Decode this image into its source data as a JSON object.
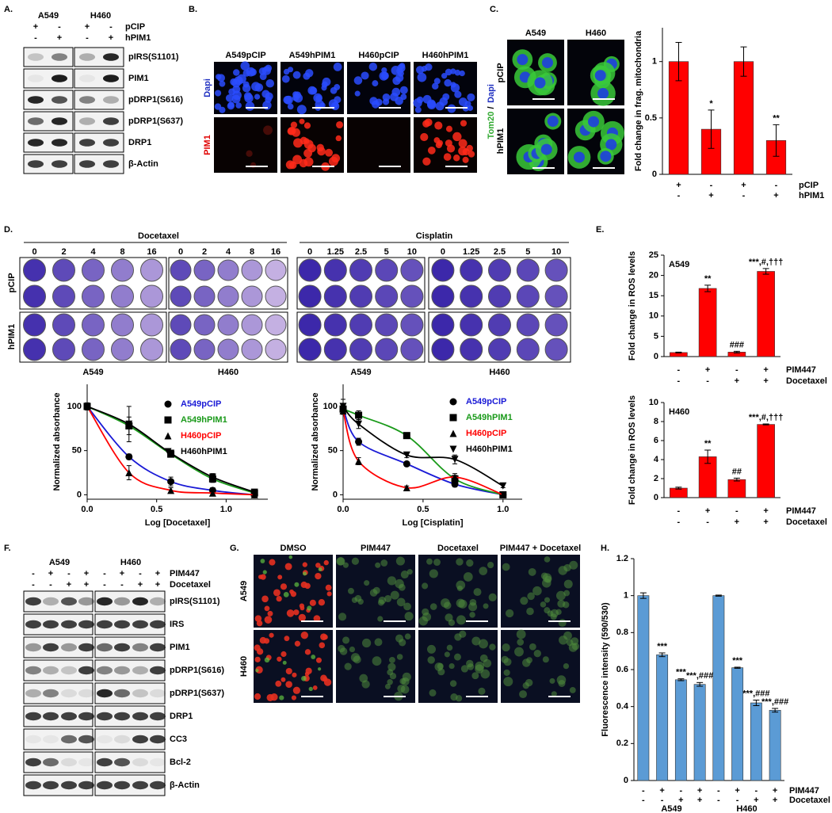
{
  "panel_labels": [
    "A.",
    "B.",
    "C.",
    "D.",
    "E.",
    "F.",
    "G.",
    "H."
  ],
  "panel_a": {
    "cell_lines": [
      "A549",
      "H460"
    ],
    "row_labels": [
      "pCIP",
      "hPIM1"
    ],
    "signs": [
      [
        "+",
        "-",
        "+",
        "-"
      ],
      [
        "-",
        "+",
        "-",
        "+"
      ]
    ],
    "bands": [
      "pIRS(S1101)",
      "PIM1",
      "pDRP1(S616)",
      "pDRP1(S637)",
      "DRP1",
      "β-Actin"
    ]
  },
  "panel_b": {
    "columns": [
      "A549pCIP",
      "A549hPIM1",
      "H460pCIP",
      "H460hPIM1"
    ],
    "rows": [
      "Dapi",
      "PIM1"
    ]
  },
  "panel_c_images": {
    "columns": [
      "A549",
      "H460"
    ],
    "rows": [
      "pCIP",
      "hPIM1"
    ],
    "stain": "Tom20",
    "separator": "/",
    "counterstain": "Dapi"
  },
  "panel_d_plates": {
    "drugs": [
      {
        "name": "Docetaxel",
        "doses": [
          "0",
          "2",
          "4",
          "8",
          "16"
        ]
      },
      {
        "name": "Cisplatin",
        "doses": [
          "0",
          "1.25",
          "2.5",
          "5",
          "10"
        ]
      }
    ],
    "rows": [
      "pCIP",
      "hPIM1"
    ],
    "cell_lines": [
      "A549",
      "H460",
      "A549",
      "H460"
    ]
  },
  "panel_f": {
    "cell_lines": [
      "A549",
      "H460"
    ],
    "conditions": [
      {
        "name": "PIM447",
        "signs": [
          "-",
          "+",
          "-",
          "+",
          "-",
          "+",
          "-",
          "+"
        ]
      },
      {
        "name": "Docetaxel",
        "signs": [
          "-",
          "-",
          "+",
          "+",
          "-",
          "-",
          "+",
          "+"
        ]
      }
    ],
    "bands": [
      "pIRS(S1101)",
      "IRS",
      "PIM1",
      "pDRP1(S616)",
      "pDRP1(S637)",
      "DRP1",
      "CC3",
      "Bcl-2",
      "β-Actin"
    ]
  },
  "panel_g": {
    "columns": [
      "DMSO",
      "PIM447",
      "Docetaxel",
      "PIM447 + Docetaxel"
    ],
    "rows": [
      "A549",
      "H460"
    ]
  },
  "chart_data": [
    {
      "type": "bar",
      "ylabel": "Fold change in frag. mitochondria",
      "values": [
        1,
        0.4,
        1,
        0.3
      ],
      "errors": [
        0.17,
        0.17,
        0.13,
        0.14
      ],
      "annotations": [
        null,
        "*",
        null,
        "**"
      ],
      "color": "#ff0000",
      "ylim": [
        0,
        1.3
      ],
      "yticks": [
        0,
        0.5,
        1
      ],
      "conditions": [
        {
          "name": "pCIP",
          "signs": [
            "+",
            "-",
            "+",
            "-"
          ]
        },
        {
          "name": "hPIM1",
          "signs": [
            "-",
            "+",
            "-",
            "+"
          ]
        }
      ]
    },
    {
      "type": "line",
      "xlabel": "Log [Docetaxel]",
      "ylabel": "Normalized absorbance",
      "x": [
        0,
        0.301,
        0.602,
        0.903,
        1.204
      ],
      "xlim": [
        0,
        1.3
      ],
      "xticks": [
        {
          "value": 0,
          "label": "0.0"
        },
        0.5,
        {
          "value": 1,
          "label": "1.0"
        }
      ],
      "ylim": [
        -5,
        125
      ],
      "yticks": [
        0,
        50,
        100
      ],
      "marker_color": "#000000",
      "series": [
        {
          "name": "A549pCIP",
          "color": "#1a1ad6",
          "marker": "circle",
          "values": [
            100,
            43,
            15,
            5,
            0
          ],
          "errors": [
            3,
            3,
            5,
            3,
            2
          ]
        },
        {
          "name": "A549hPIM1",
          "color": "#1a9a1a",
          "marker": "square",
          "values": [
            100,
            78,
            46,
            18,
            2
          ],
          "errors": [
            4,
            10,
            3,
            4,
            2
          ]
        },
        {
          "name": "H460pCIP",
          "color": "#ff0000",
          "marker": "triangle",
          "values": [
            100,
            25,
            5,
            2,
            0
          ],
          "errors": [
            3,
            8,
            3,
            2,
            1
          ]
        },
        {
          "name": "H460hPIM1",
          "color": "#000000",
          "marker": "triangle-down",
          "values": [
            100,
            80,
            47,
            20,
            3
          ],
          "errors": [
            4,
            20,
            3,
            4,
            2
          ]
        }
      ]
    },
    {
      "type": "line",
      "xlabel": "Log [Cisplatin]",
      "ylabel": "Normalized absorbance",
      "x": [
        0,
        0.097,
        0.398,
        0.699,
        1.0
      ],
      "xlim": [
        0,
        1.12
      ],
      "xticks": [
        {
          "value": 0,
          "label": "0.0"
        },
        0.5,
        {
          "value": 1,
          "label": "1.0"
        }
      ],
      "ylim": [
        -5,
        125
      ],
      "yticks": [
        0,
        50,
        100
      ],
      "marker_color": "#000000",
      "series": [
        {
          "name": "A549pCIP",
          "color": "#1a1ad6",
          "marker": "circle",
          "values": [
            98,
            60,
            35,
            12,
            0
          ],
          "errors": [
            3,
            4,
            2,
            3,
            2
          ]
        },
        {
          "name": "A549hPIM1",
          "color": "#1a9a1a",
          "marker": "square",
          "values": [
            97,
            90,
            67,
            18,
            0
          ],
          "errors": [
            6,
            5,
            2,
            4,
            2
          ]
        },
        {
          "name": "H460pCIP",
          "color": "#ff0000",
          "marker": "triangle",
          "values": [
            95,
            38,
            8,
            20,
            0
          ],
          "errors": [
            3,
            4,
            2,
            4,
            2
          ]
        },
        {
          "name": "H460hPIM1",
          "color": "#000000",
          "marker": "triangle-down",
          "values": [
            100,
            80,
            45,
            40,
            10
          ],
          "errors": [
            8,
            5,
            3,
            5,
            2
          ]
        }
      ]
    },
    {
      "type": "bar",
      "label": "A549",
      "ylabel": "Fold change in ROS levels",
      "values": [
        1,
        16.8,
        1.1,
        21
      ],
      "errors": [
        0.1,
        0.8,
        0.2,
        0.7
      ],
      "annotations": [
        null,
        "**",
        "###",
        "***,#,†††"
      ],
      "color": "#ff0000",
      "ylim": [
        0,
        25
      ],
      "yticks": [
        0,
        5,
        10,
        15,
        20,
        25
      ],
      "conditions": [
        {
          "name": "PIM447",
          "signs": [
            "-",
            "+",
            "-",
            "+"
          ]
        },
        {
          "name": "Docetaxel",
          "signs": [
            "-",
            "-",
            "+",
            "+"
          ]
        }
      ]
    },
    {
      "type": "bar",
      "label": "H460",
      "ylabel": "Fold change in ROS levels",
      "values": [
        1,
        4.3,
        1.9,
        7.7
      ],
      "errors": [
        0.1,
        0.7,
        0.15,
        0.05
      ],
      "annotations": [
        null,
        "**",
        "##",
        "***,#,†††"
      ],
      "color": "#ff0000",
      "ylim": [
        0,
        10
      ],
      "yticks": [
        0,
        2,
        4,
        6,
        8,
        10
      ],
      "conditions": [
        {
          "name": "PIM447",
          "signs": [
            "-",
            "+",
            "-",
            "+"
          ]
        },
        {
          "name": "Docetaxel",
          "signs": [
            "-",
            "-",
            "+",
            "+"
          ]
        }
      ]
    },
    {
      "type": "bar",
      "ylabel": "Fluorescence intensity (590/530)",
      "values": [
        1,
        0.68,
        0.545,
        0.52,
        1,
        0.61,
        0.42,
        0.38
      ],
      "errors": [
        0.015,
        0.01,
        0.005,
        0.01,
        0.003,
        0.003,
        0.015,
        0.01
      ],
      "annotations": [
        null,
        "***",
        "***",
        "***,###",
        null,
        "***",
        "***,###",
        "***,###"
      ],
      "color": "#5b9bd5",
      "ylim": [
        0,
        1.2
      ],
      "yticks": [
        0,
        0.2,
        0.4,
        0.6,
        0.8,
        1,
        1.2
      ],
      "conditions": [
        {
          "name": "PIM447",
          "signs": [
            "-",
            "+",
            "-",
            "+",
            "-",
            "+",
            "-",
            "+"
          ]
        },
        {
          "name": "Docetaxel",
          "signs": [
            "-",
            "-",
            "+",
            "+",
            "-",
            "-",
            "+",
            "+"
          ]
        }
      ],
      "groups": [
        "A549",
        "H460"
      ]
    }
  ]
}
